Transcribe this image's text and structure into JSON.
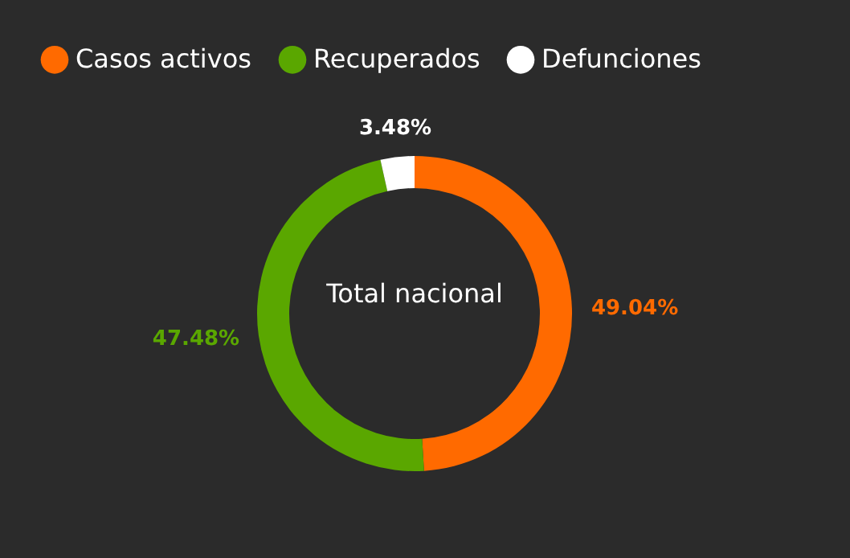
{
  "chart_data": {
    "type": "donut",
    "categories": [
      "Casos activos",
      "Recuperados",
      "Defunciones"
    ],
    "values": [
      49.04,
      47.48,
      3.48
    ],
    "colors": [
      "#ff6a00",
      "#5aa700",
      "#ffffff"
    ],
    "value_labels": [
      "49.04%",
      "47.48%",
      "3.48%"
    ],
    "annotations": [
      "Total nacional"
    ],
    "legend": "top left"
  }
}
